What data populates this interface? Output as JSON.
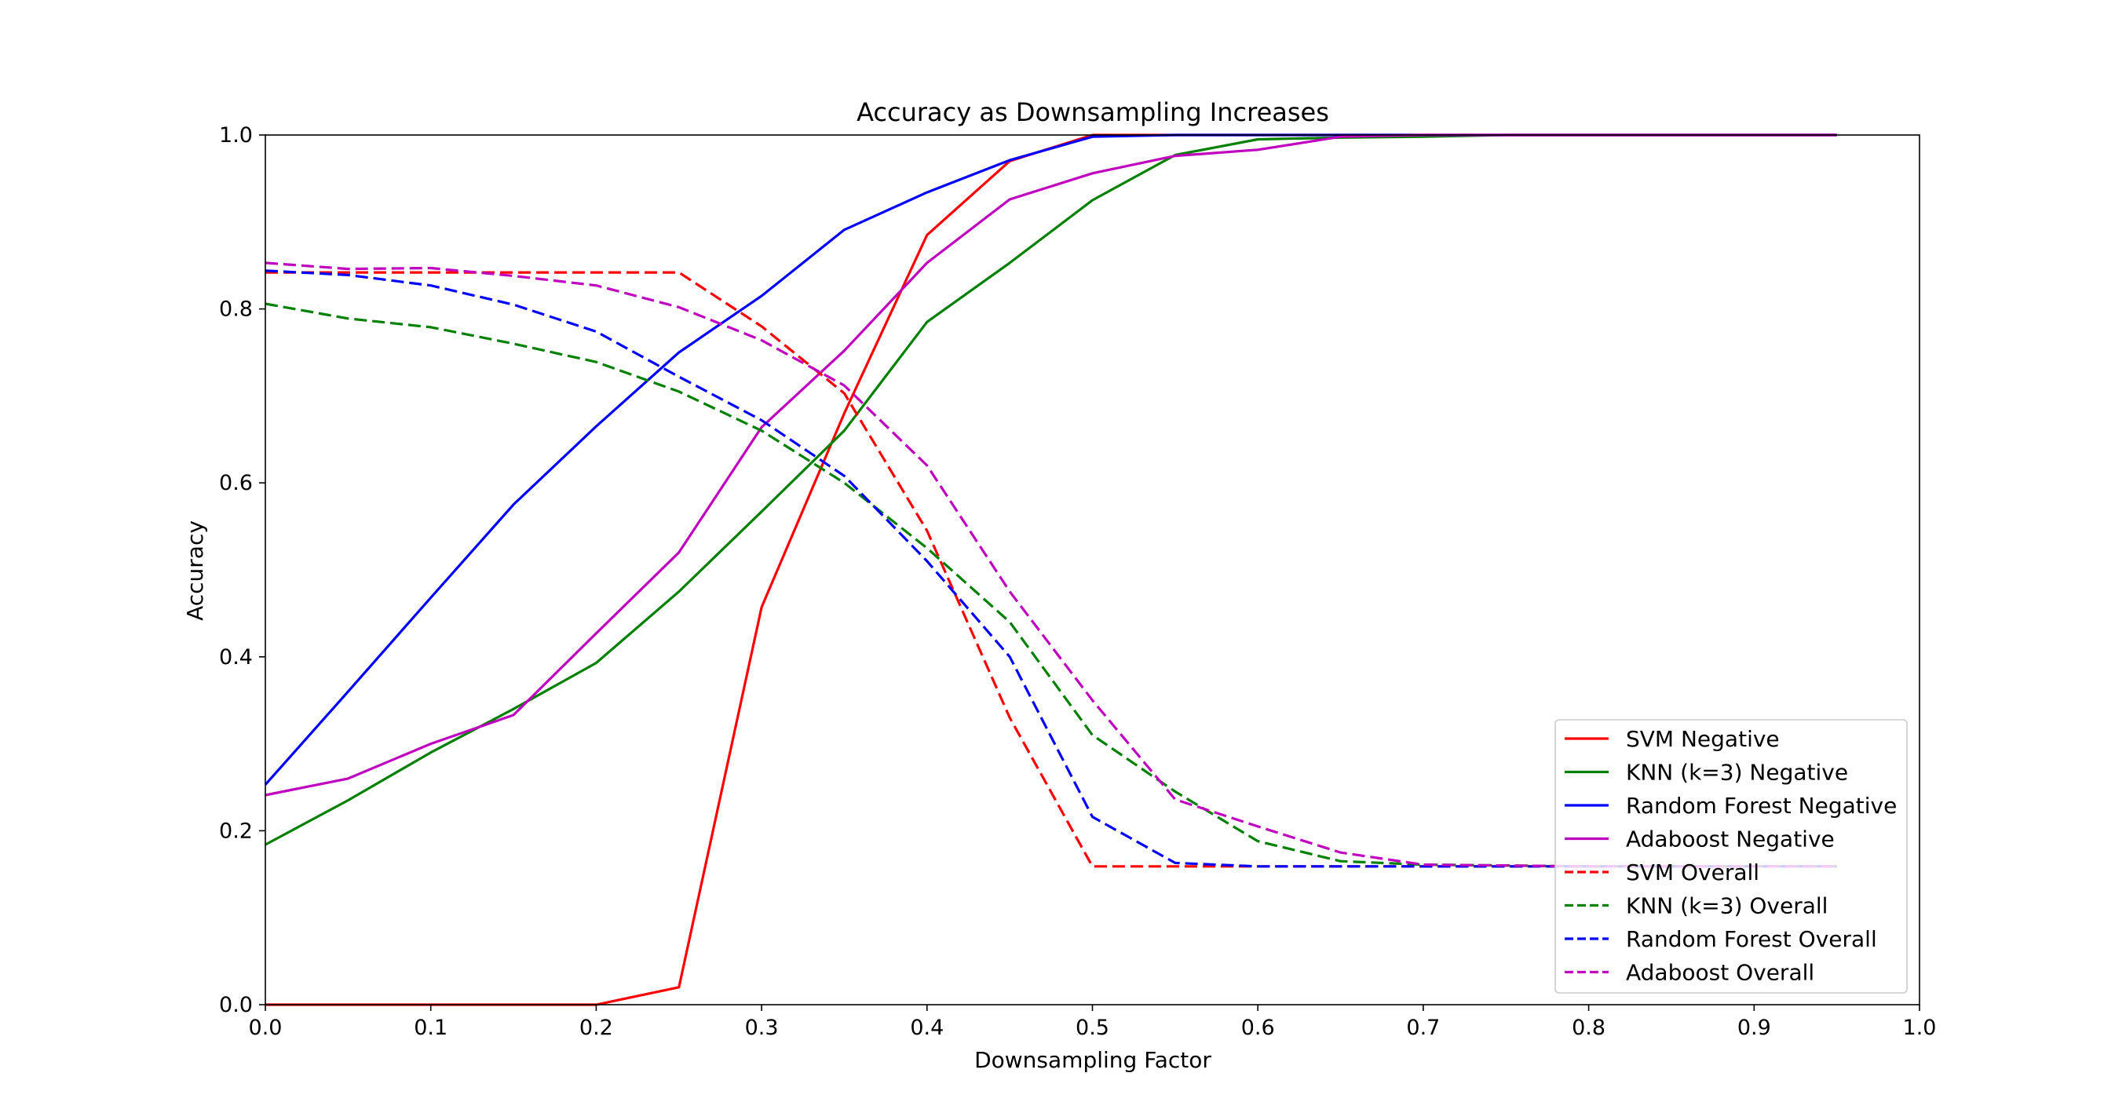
{
  "chart_data": {
    "type": "line",
    "title": "Accuracy as Downsampling Increases",
    "xlabel": "Downsampling Factor",
    "ylabel": "Accuracy",
    "xlim": [
      0.0,
      1.0
    ],
    "ylim": [
      0.0,
      1.0
    ],
    "xticks": [
      0.0,
      0.1,
      0.2,
      0.3,
      0.4,
      0.5,
      0.6,
      0.7,
      0.8,
      0.9,
      1.0
    ],
    "yticks": [
      0.0,
      0.2,
      0.4,
      0.6,
      0.8,
      1.0
    ],
    "xtick_labels": [
      "0.0",
      "0.1",
      "0.2",
      "0.3",
      "0.4",
      "0.5",
      "0.6",
      "0.7",
      "0.8",
      "0.9",
      "1.0"
    ],
    "ytick_labels": [
      "0.0",
      "0.2",
      "0.4",
      "0.6",
      "0.8",
      "1.0"
    ],
    "grid": false,
    "legend_position": "lower-right",
    "x": [
      0.0,
      0.05,
      0.1,
      0.15,
      0.2,
      0.25,
      0.3,
      0.35,
      0.4,
      0.45,
      0.5,
      0.55,
      0.6,
      0.65,
      0.7,
      0.75,
      0.8,
      0.85,
      0.9,
      0.95
    ],
    "series": [
      {
        "name": "SVM Negative",
        "color": "#ff0000",
        "dash": "solid",
        "values": [
          0.0,
          0.0,
          0.0,
          0.0,
          0.0,
          0.02,
          0.457,
          0.68,
          0.885,
          0.97,
          1.0,
          1.0,
          1.0,
          1.0,
          1.0,
          1.0,
          1.0,
          1.0,
          1.0,
          1.0
        ]
      },
      {
        "name": "KNN (k=3) Negative",
        "color": "#008000",
        "dash": "solid",
        "values": [
          0.184,
          0.235,
          0.29,
          0.34,
          0.393,
          0.475,
          0.567,
          0.66,
          0.785,
          0.853,
          0.925,
          0.977,
          0.995,
          0.997,
          0.998,
          1.0,
          1.0,
          1.0,
          1.0,
          1.0
        ]
      },
      {
        "name": "Random Forest Negative",
        "color": "#0000ff",
        "dash": "solid",
        "values": [
          0.253,
          0.36,
          0.468,
          0.575,
          0.665,
          0.75,
          0.815,
          0.891,
          0.934,
          0.971,
          0.998,
          1.0,
          1.0,
          1.0,
          1.0,
          1.0,
          1.0,
          1.0,
          1.0,
          1.0
        ]
      },
      {
        "name": "Adaboost Negative",
        "color": "#bf00bf",
        "dash": "solid",
        "values": [
          0.241,
          0.26,
          0.3,
          0.333,
          0.427,
          0.52,
          0.664,
          0.752,
          0.853,
          0.926,
          0.956,
          0.976,
          0.983,
          0.998,
          1.0,
          1.0,
          1.0,
          1.0,
          1.0,
          1.0
        ]
      },
      {
        "name": "SVM Overall",
        "color": "#ff0000",
        "dash": "dashed",
        "values": [
          0.842,
          0.842,
          0.842,
          0.842,
          0.842,
          0.842,
          0.78,
          0.703,
          0.545,
          0.33,
          0.159,
          0.159,
          0.159,
          0.159,
          0.159,
          0.159,
          0.159,
          0.159,
          0.159,
          0.159
        ]
      },
      {
        "name": "KNN (k=3) Overall",
        "color": "#008000",
        "dash": "dashed",
        "values": [
          0.806,
          0.789,
          0.779,
          0.76,
          0.739,
          0.705,
          0.66,
          0.6,
          0.525,
          0.44,
          0.31,
          0.245,
          0.188,
          0.165,
          0.161,
          0.16,
          0.159,
          0.159,
          0.159,
          0.159
        ]
      },
      {
        "name": "Random Forest Overall",
        "color": "#0000ff",
        "dash": "dashed",
        "values": [
          0.844,
          0.839,
          0.827,
          0.805,
          0.774,
          0.722,
          0.672,
          0.608,
          0.51,
          0.4,
          0.216,
          0.163,
          0.159,
          0.159,
          0.159,
          0.159,
          0.159,
          0.159,
          0.159,
          0.159
        ]
      },
      {
        "name": "Adaboost Overall",
        "color": "#bf00bf",
        "dash": "dashed",
        "values": [
          0.853,
          0.846,
          0.847,
          0.838,
          0.827,
          0.802,
          0.764,
          0.712,
          0.62,
          0.475,
          0.35,
          0.236,
          0.205,
          0.175,
          0.161,
          0.16,
          0.159,
          0.159,
          0.159,
          0.159
        ]
      }
    ]
  }
}
